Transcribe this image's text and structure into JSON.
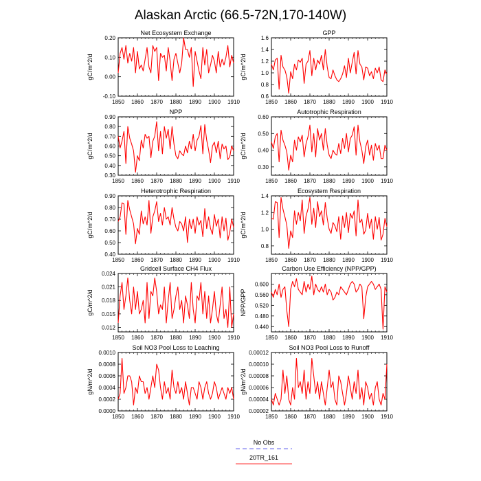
{
  "title": "Alaskan Arctic (66.5-72N,170-140W)",
  "legend": {
    "items": [
      {
        "label": "No Obs",
        "color": "#8080f0",
        "dashed": true
      },
      {
        "label": "20TR_161",
        "color": "#ff5a5a",
        "dashed": false
      }
    ]
  },
  "chart_data": [
    {
      "type": "line",
      "title": "Net Ecosystem Exchange",
      "xlabel": "",
      "ylabel": "gC/m^2/d",
      "xlim": [
        1850,
        1910
      ],
      "ylim": [
        -0.1,
        0.2
      ],
      "yticks": [
        -0.1,
        0,
        0.1,
        0.2
      ],
      "ytick_labels": [
        "-0.10",
        "0.00",
        "0.10",
        "0.20"
      ],
      "xticks": [
        1850,
        1860,
        1870,
        1880,
        1890,
        1900,
        1910
      ],
      "series": [
        {
          "color": "#ff0000",
          "x_start": 1850,
          "values": [
            0.02,
            0.12,
            0.15,
            0.09,
            0.16,
            0.07,
            0.12,
            0.08,
            0.15,
            0.02,
            0.13,
            0.04,
            0.06,
            0.03,
            0.09,
            0.15,
            0.05,
            0.02,
            0.16,
            0.13,
            0.15,
            -0.02,
            0.12,
            0.1,
            0.11,
            0.03,
            0.15,
            0.08,
            -0.02,
            0.09,
            0.12,
            0.07,
            0.02,
            0.07,
            0.2,
            0.14,
            0.14,
            0.1,
            0.15,
            -0.05,
            0.13,
            0.08,
            0.03,
            -0.01,
            0.15,
            0.06,
            0.14,
            0.02,
            0.06,
            0.11,
            0.08,
            0.02,
            0.13,
            0.05,
            0.09,
            0.06,
            0.1,
            0.16,
            0.05,
            0.11,
            0.07
          ]
        }
      ]
    },
    {
      "type": "line",
      "title": "GPP",
      "xlabel": "",
      "ylabel": "gC/m^2/d",
      "xlim": [
        1850,
        1910
      ],
      "ylim": [
        0.6,
        1.6
      ],
      "yticks": [
        0.6,
        0.8,
        1.0,
        1.2,
        1.4,
        1.6
      ],
      "ytick_labels": [
        "0.6",
        "0.8",
        "1.0",
        "1.2",
        "1.4",
        "1.6"
      ],
      "xticks": [
        1850,
        1860,
        1870,
        1880,
        1890,
        1900,
        1910
      ],
      "series": [
        {
          "color": "#ff0000",
          "x_start": 1850,
          "values": [
            1.15,
            1.05,
            1.22,
            1.25,
            0.72,
            1.3,
            1.1,
            1.05,
            0.93,
            0.65,
            1.02,
            0.9,
            1.15,
            1.05,
            1.22,
            1.18,
            1.25,
            0.82,
            1.15,
            1.2,
            1.38,
            0.95,
            1.25,
            1.05,
            1.22,
            1.15,
            1.3,
            1.05,
            1.4,
            1.1,
            0.92,
            0.9,
            1.05,
            0.95,
            0.88,
            0.85,
            0.9,
            0.98,
            1.12,
            0.92,
            1.25,
            1.0,
            1.18,
            1.35,
            0.98,
            1.38,
            1.15,
            1.1,
            0.88,
            1.1,
            1.08,
            0.95,
            1.02,
            0.9,
            1.08,
            1.0,
            1.1,
            0.88,
            0.85,
            1.05,
            0.98
          ]
        }
      ]
    },
    {
      "type": "line",
      "title": "NPP",
      "xlabel": "",
      "ylabel": "gC/m^2/d",
      "xlim": [
        1850,
        1910
      ],
      "ylim": [
        0.3,
        0.9
      ],
      "yticks": [
        0.3,
        0.4,
        0.5,
        0.6,
        0.7,
        0.8,
        0.9
      ],
      "ytick_labels": [
        "0.30",
        "0.40",
        "0.50",
        "0.60",
        "0.70",
        "0.80",
        "0.90"
      ],
      "xticks": [
        1850,
        1860,
        1870,
        1880,
        1890,
        1900,
        1910
      ],
      "series": [
        {
          "color": "#ff0000",
          "x_start": 1850,
          "values": [
            0.7,
            0.58,
            0.65,
            0.75,
            0.42,
            0.8,
            0.68,
            0.62,
            0.55,
            0.33,
            0.5,
            0.45,
            0.66,
            0.58,
            0.72,
            0.68,
            0.7,
            0.48,
            0.65,
            0.7,
            0.85,
            0.55,
            0.75,
            0.52,
            0.8,
            0.68,
            0.77,
            0.57,
            0.8,
            0.62,
            0.5,
            0.47,
            0.55,
            0.52,
            0.5,
            0.6,
            0.53,
            0.65,
            0.57,
            0.72,
            0.55,
            0.66,
            0.7,
            0.81,
            0.52,
            0.82,
            0.66,
            0.56,
            0.43,
            0.6,
            0.64,
            0.53,
            0.65,
            0.47,
            0.62,
            0.57,
            0.6,
            0.46,
            0.49,
            0.6,
            0.55
          ]
        }
      ]
    },
    {
      "type": "line",
      "title": "Autotrophic Respiration",
      "xlabel": "",
      "ylabel": "gC/m^2/d",
      "xlim": [
        1850,
        1910
      ],
      "ylim": [
        0.25,
        0.6
      ],
      "yticks": [
        0.3,
        0.4,
        0.5,
        0.6
      ],
      "ytick_labels": [
        "0.30",
        "0.40",
        "0.50",
        "0.60"
      ],
      "xticks": [
        1850,
        1860,
        1870,
        1880,
        1890,
        1900,
        1910
      ],
      "series": [
        {
          "color": "#ff0000",
          "x_start": 1850,
          "values": [
            0.45,
            0.41,
            0.48,
            0.5,
            0.33,
            0.52,
            0.46,
            0.43,
            0.39,
            0.28,
            0.37,
            0.33,
            0.46,
            0.4,
            0.48,
            0.45,
            0.49,
            0.36,
            0.44,
            0.48,
            0.55,
            0.39,
            0.5,
            0.36,
            0.53,
            0.46,
            0.5,
            0.4,
            0.53,
            0.43,
            0.37,
            0.35,
            0.4,
            0.38,
            0.37,
            0.44,
            0.38,
            0.47,
            0.41,
            0.5,
            0.39,
            0.47,
            0.49,
            0.54,
            0.37,
            0.55,
            0.45,
            0.4,
            0.32,
            0.42,
            0.46,
            0.37,
            0.43,
            0.34,
            0.44,
            0.4,
            0.43,
            0.35,
            0.35,
            0.43,
            0.4
          ]
        }
      ]
    },
    {
      "type": "line",
      "title": "Heterotrophic Respiration",
      "xlabel": "",
      "ylabel": "gC/m^2/d",
      "xlim": [
        1850,
        1910
      ],
      "ylim": [
        0.4,
        0.9
      ],
      "yticks": [
        0.4,
        0.5,
        0.6,
        0.7,
        0.8,
        0.9
      ],
      "ytick_labels": [
        "0.40",
        "0.50",
        "0.60",
        "0.70",
        "0.80",
        "0.90"
      ],
      "xticks": [
        1850,
        1860,
        1870,
        1880,
        1890,
        1900,
        1910
      ],
      "series": [
        {
          "color": "#ff0000",
          "x_start": 1850,
          "values": [
            0.68,
            0.72,
            0.84,
            0.83,
            0.57,
            0.86,
            0.78,
            0.72,
            0.66,
            0.49,
            0.62,
            0.57,
            0.77,
            0.66,
            0.72,
            0.65,
            0.86,
            0.58,
            0.72,
            0.77,
            0.85,
            0.68,
            0.75,
            0.65,
            0.8,
            0.7,
            0.72,
            0.65,
            0.8,
            0.7,
            0.63,
            0.6,
            0.68,
            0.66,
            0.6,
            0.72,
            0.5,
            0.7,
            0.62,
            0.7,
            0.58,
            0.72,
            0.65,
            0.69,
            0.55,
            0.79,
            0.62,
            0.72,
            0.62,
            0.57,
            0.74,
            0.64,
            0.7,
            0.54,
            0.72,
            0.6,
            0.71,
            0.52,
            0.59,
            0.7,
            0.63
          ]
        }
      ]
    },
    {
      "type": "line",
      "title": "Ecosystem Respiration",
      "xlabel": "",
      "ylabel": "gC/m^2/d",
      "xlim": [
        1850,
        1910
      ],
      "ylim": [
        0.7,
        1.4
      ],
      "yticks": [
        0.8,
        1.0,
        1.2,
        1.4
      ],
      "ytick_labels": [
        "0.8",
        "1.0",
        "1.2",
        "1.4"
      ],
      "xticks": [
        1850,
        1860,
        1870,
        1880,
        1890,
        1900,
        1910
      ],
      "series": [
        {
          "color": "#ff0000",
          "x_start": 1850,
          "values": [
            1.13,
            1.12,
            1.33,
            1.32,
            0.9,
            1.38,
            1.24,
            1.15,
            1.05,
            0.77,
            0.98,
            0.9,
            1.22,
            1.06,
            1.2,
            1.1,
            1.35,
            0.95,
            1.16,
            1.24,
            1.38,
            1.06,
            1.25,
            1.02,
            1.33,
            1.15,
            1.22,
            1.05,
            1.32,
            1.13,
            1.0,
            0.95,
            1.08,
            1.04,
            0.97,
            1.15,
            0.88,
            1.16,
            1.02,
            1.2,
            0.96,
            1.19,
            1.13,
            1.22,
            0.92,
            1.35,
            1.08,
            1.12,
            0.94,
            0.99,
            1.19,
            1.01,
            1.12,
            0.88,
            1.15,
            1.0,
            1.14,
            0.87,
            0.94,
            1.13,
            1.03
          ]
        }
      ]
    },
    {
      "type": "line",
      "title": "Gridcell Surface CH4 Flux",
      "xlabel": "",
      "ylabel": "gC/m^2/d",
      "xlim": [
        1850,
        1910
      ],
      "ylim": [
        0.011,
        0.024
      ],
      "yticks": [
        0.012,
        0.015,
        0.018,
        0.021,
        0.024
      ],
      "ytick_labels": [
        "0.012",
        "0.015",
        "0.018",
        "0.021",
        "0.024"
      ],
      "xticks": [
        1850,
        1860,
        1870,
        1880,
        1890,
        1900,
        1910
      ],
      "series": [
        {
          "color": "#ff0000",
          "x_start": 1850,
          "values": [
            0.013,
            0.019,
            0.022,
            0.016,
            0.019,
            0.023,
            0.018,
            0.015,
            0.021,
            0.016,
            0.02,
            0.015,
            0.016,
            0.018,
            0.013,
            0.022,
            0.014,
            0.02,
            0.019,
            0.023,
            0.02,
            0.015,
            0.017,
            0.016,
            0.021,
            0.013,
            0.018,
            0.022,
            0.014,
            0.016,
            0.019,
            0.021,
            0.016,
            0.018,
            0.013,
            0.019,
            0.017,
            0.014,
            0.022,
            0.016,
            0.013,
            0.019,
            0.018,
            0.022,
            0.015,
            0.02,
            0.014,
            0.019,
            0.013,
            0.016,
            0.02,
            0.015,
            0.013,
            0.017,
            0.021,
            0.014,
            0.016,
            0.012,
            0.021,
            0.012,
            0.015
          ]
        }
      ]
    },
    {
      "type": "line",
      "title": "Carbon Use Efficiency (NPP/GPP)",
      "xlabel": "",
      "ylabel": "NPP/GPP",
      "xlim": [
        1850,
        1910
      ],
      "ylim": [
        0.42,
        0.64
      ],
      "yticks": [
        0.44,
        0.48,
        0.52,
        0.56,
        0.6
      ],
      "ytick_labels": [
        "0.440",
        "0.480",
        "0.520",
        "0.560",
        "0.600"
      ],
      "xticks": [
        1850,
        1860,
        1870,
        1880,
        1890,
        1900,
        1910
      ],
      "series": [
        {
          "color": "#ff0000",
          "x_start": 1850,
          "values": [
            0.57,
            0.55,
            0.58,
            0.56,
            0.6,
            0.55,
            0.58,
            0.59,
            0.5,
            0.44,
            0.58,
            0.61,
            0.59,
            0.62,
            0.58,
            0.57,
            0.56,
            0.61,
            0.57,
            0.6,
            0.58,
            0.63,
            0.56,
            0.6,
            0.58,
            0.57,
            0.59,
            0.57,
            0.6,
            0.56,
            0.58,
            0.57,
            0.54,
            0.55,
            0.57,
            0.56,
            0.59,
            0.58,
            0.57,
            0.56,
            0.58,
            0.6,
            0.61,
            0.6,
            0.57,
            0.58,
            0.6,
            0.59,
            0.47,
            0.55,
            0.59,
            0.6,
            0.61,
            0.6,
            0.58,
            0.59,
            0.6,
            0.58,
            0.43,
            0.59,
            0.57
          ]
        }
      ]
    },
    {
      "type": "line",
      "title": "Soil NO3 Pool Loss to Leaching",
      "xlabel": "",
      "ylabel": "gN/m^2/d",
      "xlim": [
        1850,
        1910
      ],
      "ylim": [
        0,
        0.001
      ],
      "yticks": [
        0,
        0.0002,
        0.0004,
        0.0006,
        0.0008,
        0.001
      ],
      "ytick_labels": [
        "0.0000",
        "0.0002",
        "0.0004",
        "0.0006",
        "0.0008",
        "0.0010"
      ],
      "xticks": [
        1850,
        1860,
        1870,
        1880,
        1890,
        1900,
        1910
      ],
      "series": [
        {
          "color": "#ff0000",
          "x_start": 1850,
          "values": [
            0.0002,
            0.0003,
            0.0009,
            0.0003,
            0.0004,
            0.0006,
            0.0006,
            0.0005,
            0.0001,
            0.0004,
            0.0003,
            0.0006,
            0.0005,
            0.0005,
            0.0003,
            0.0004,
            0.0002,
            0.0004,
            0.0006,
            0.0004,
            0.0008,
            0.0007,
            0.0004,
            0.0002,
            0.0005,
            0.0003,
            0.0004,
            0.0002,
            0.0007,
            0.0004,
            0.0003,
            0.0005,
            0.0003,
            0.0004,
            0.0002,
            0.0005,
            0.0003,
            0.0001,
            0.0004,
            0.0004,
            0.0003,
            0.0002,
            0.0005,
            0.0004,
            0.0002,
            0.0004,
            0.0005,
            0.0003,
            0.0002,
            0.0003,
            0.0005,
            0.0004,
            0.0002,
            0.0003,
            0.0004,
            0.0003,
            0.0002,
            0.0004,
            0.0003,
            0.0004,
            0.0002
          ]
        }
      ]
    },
    {
      "type": "line",
      "title": "Soil NO3 Pool Loss to Runoff",
      "xlabel": "",
      "ylabel": "gN/m^2/d",
      "xlim": [
        1850,
        1910
      ],
      "ylim": [
        2e-05,
        0.00012
      ],
      "yticks": [
        2e-05,
        4e-05,
        6e-05,
        8e-05,
        0.0001,
        0.00012
      ],
      "ytick_labels": [
        "0.00002",
        "0.00004",
        "0.00006",
        "0.00008",
        "0.00010",
        "0.00012"
      ],
      "xticks": [
        1850,
        1860,
        1870,
        1880,
        1890,
        1900,
        1910
      ],
      "series": [
        {
          "color": "#ff0000",
          "x_start": 1850,
          "values": [
            4e-05,
            3e-05,
            5e-05,
            4e-05,
            3e-05,
            4e-05,
            9e-05,
            5e-05,
            8e-05,
            4e-05,
            3e-05,
            6e-05,
            4e-05,
            0.00011,
            6e-05,
            7e-05,
            5e-05,
            9e-05,
            4e-05,
            7e-05,
            5e-05,
            0.00011,
            8e-05,
            5e-05,
            7e-05,
            4e-05,
            7e-05,
            5e-05,
            3e-05,
            6e-05,
            9e-05,
            6e-05,
            7e-05,
            4e-05,
            3e-05,
            8e-05,
            7e-05,
            5e-05,
            3e-05,
            5e-05,
            8e-05,
            6e-05,
            4e-05,
            7e-05,
            5e-05,
            9e-05,
            4e-05,
            6e-05,
            3e-05,
            7e-05,
            6e-05,
            4e-05,
            5e-05,
            3e-05,
            6e-05,
            7e-05,
            4e-05,
            3e-05,
            5e-05,
            4e-05,
            0.0001
          ]
        }
      ]
    }
  ]
}
